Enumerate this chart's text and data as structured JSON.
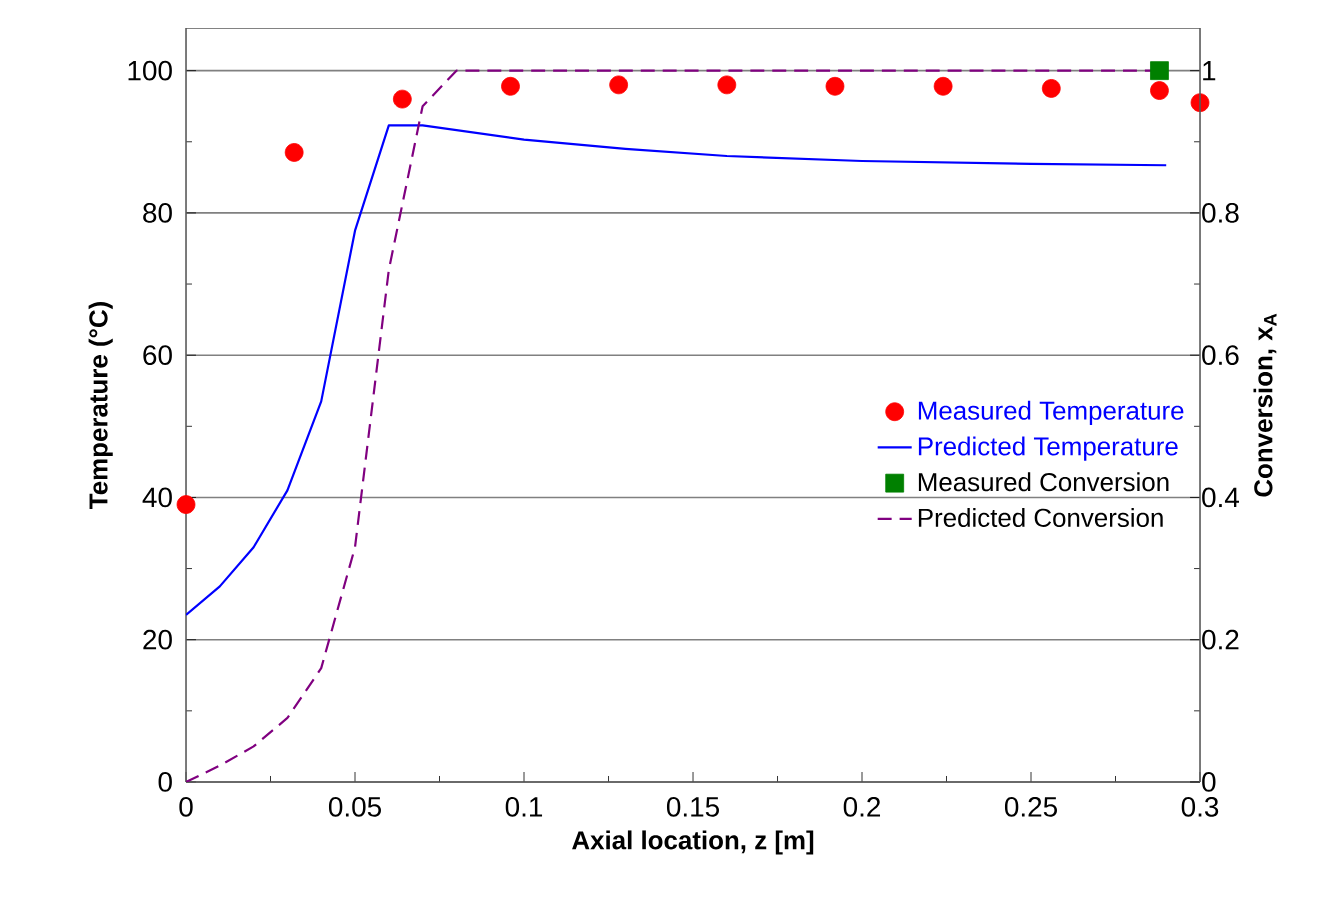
{
  "chart_data": {
    "type": "line",
    "xlabel": "Axial location, z  [m]",
    "ylabel": "Temperature (°C)",
    "y2label": "Conversion, x$_{A}$",
    "xlim": [
      0,
      0.3
    ],
    "xticks": [
      0,
      0.05,
      0.1,
      0.15,
      0.2,
      0.25,
      0.3
    ],
    "ylim": [
      0,
      106
    ],
    "yticks": [
      0,
      20,
      40,
      60,
      80,
      100
    ],
    "y2lim": [
      0,
      1.06
    ],
    "y2ticks": [
      0,
      0.2,
      0.4,
      0.6,
      0.8,
      1
    ],
    "grid": "y",
    "legend": "right",
    "series": [
      {
        "name": "Measured Temperature",
        "type": "scatter",
        "marker": "circle",
        "color": "#ff0000",
        "x": [
          0,
          0.032,
          0.064,
          0.096,
          0.128,
          0.16,
          0.192,
          0.224,
          0.256,
          0.288,
          0.3
        ],
        "values": [
          39,
          88.5,
          96,
          97.8,
          98,
          98,
          97.8,
          97.8,
          97.5,
          97.2,
          95.5
        ]
      },
      {
        "name": "Predicted Temperature",
        "line_style": "solid",
        "color": "#0000ff",
        "x": [
          0,
          0.01,
          0.02,
          0.03,
          0.04,
          0.05,
          0.06,
          0.07,
          0.1,
          0.13,
          0.16,
          0.2,
          0.25,
          0.29
        ],
        "values": [
          23.5,
          27.5,
          33,
          41,
          53.5,
          77.5,
          92.3,
          92.3,
          90.3,
          89,
          88,
          87.3,
          86.9,
          86.7
        ]
      },
      {
        "name": "Measured Conversion",
        "type": "scatter",
        "marker": "square",
        "axis": "y2",
        "color": "#008000",
        "x": [
          0.288
        ],
        "values": [
          1.0
        ]
      },
      {
        "name": "Predicted Conversion",
        "line_style": "dashed",
        "axis": "y2",
        "color": "#800080",
        "x": [
          0,
          0.01,
          0.02,
          0.03,
          0.04,
          0.05,
          0.06,
          0.07,
          0.08,
          0.29
        ],
        "values": [
          0,
          0.023,
          0.05,
          0.09,
          0.16,
          0.33,
          0.72,
          0.95,
          1.0,
          1.0
        ]
      }
    ]
  }
}
